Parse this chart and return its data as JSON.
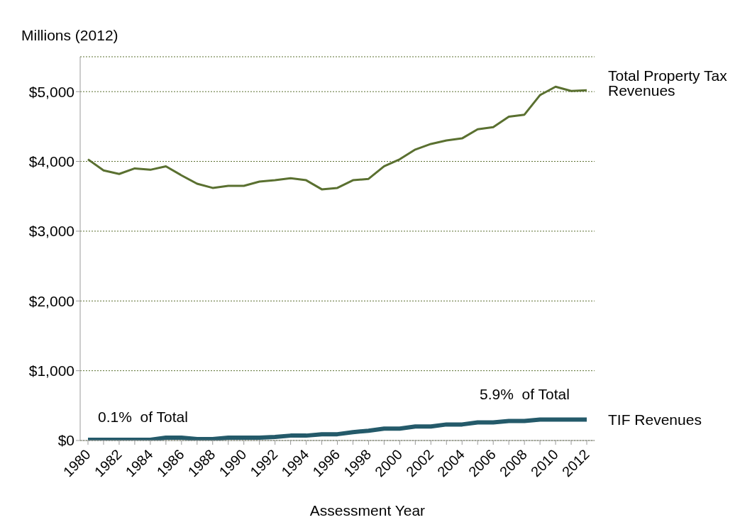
{
  "chart_data": {
    "type": "line",
    "ylabel": "Millions (2012)",
    "xlabel": "Assessment Year",
    "categories": [
      "1980",
      null,
      "1982",
      null,
      "1984",
      null,
      "1986",
      null,
      "1988",
      null,
      "1990",
      null,
      "1992",
      null,
      "1994",
      null,
      "1996",
      null,
      "1998",
      null,
      "2000",
      null,
      "2002",
      null,
      "2004",
      null,
      "2006",
      null,
      "2008",
      null,
      "2010",
      null,
      "2012"
    ],
    "series": [
      {
        "name": "Total Property Tax Revenues",
        "color": "#5a7030",
        "values": [
          4030,
          3870,
          3820,
          3900,
          3880,
          3930,
          3800,
          3680,
          3620,
          3650,
          3650,
          3710,
          3730,
          3760,
          3730,
          3600,
          3620,
          3730,
          3750,
          3930,
          4030,
          4170,
          4250,
          4300,
          4330,
          4460,
          4490,
          4640,
          4670,
          4950,
          5070,
          5010,
          5020
        ]
      },
      {
        "name": "TIF Revenues",
        "color": "#245a6a",
        "values": [
          10,
          10,
          10,
          10,
          10,
          40,
          40,
          20,
          20,
          40,
          40,
          40,
          50,
          70,
          70,
          90,
          90,
          120,
          140,
          170,
          170,
          200,
          200,
          230,
          230,
          260,
          260,
          280,
          280,
          300,
          300,
          300,
          300
        ]
      }
    ],
    "ylim": [
      0,
      5500
    ],
    "yticks": [
      {
        "value": 0,
        "label": "$0"
      },
      {
        "value": 1000,
        "label": "$1,000"
      },
      {
        "value": 2000,
        "label": "$2,000"
      },
      {
        "value": 3000,
        "label": "$3,000"
      },
      {
        "value": 4000,
        "label": "$4,000"
      },
      {
        "value": 5000,
        "label": "$5,000"
      }
    ],
    "grid": "y",
    "marker": "none",
    "line_style": "solid",
    "annotations": [
      "0.1%  of Total",
      "5.9%  of Total"
    ]
  }
}
